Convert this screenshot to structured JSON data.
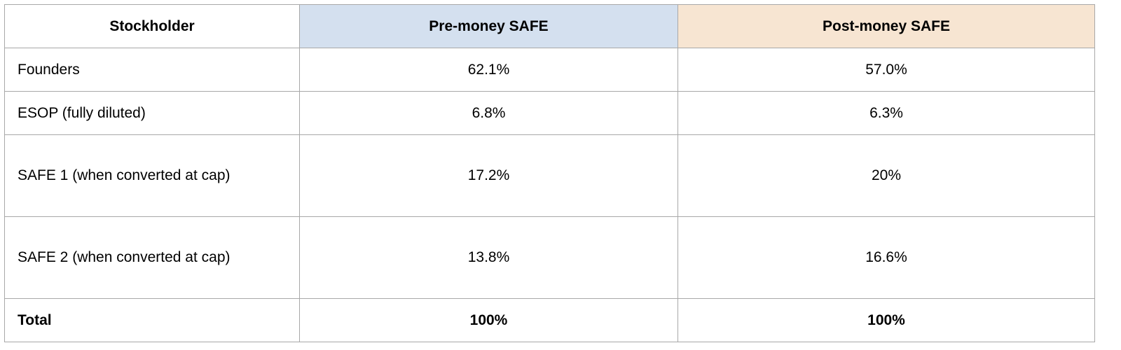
{
  "table": {
    "headers": {
      "stockholder": "Stockholder",
      "pre_money": "Pre-money SAFE",
      "post_money": "Post-money SAFE"
    },
    "header_colors": {
      "pre_money": "#d4e0ef",
      "post_money": "#f7e5d2"
    },
    "rows": [
      {
        "stockholder": "Founders",
        "pre_money": "62.1%",
        "post_money": "57.0%"
      },
      {
        "stockholder": "ESOP (fully diluted)",
        "pre_money": "6.8%",
        "post_money": "6.3%"
      },
      {
        "stockholder": "SAFE 1 (when converted at cap)",
        "pre_money": "17.2%",
        "post_money": "20%"
      },
      {
        "stockholder": "SAFE 2 (when converted at cap)",
        "pre_money": "13.8%",
        "post_money": "16.6%"
      }
    ],
    "total": {
      "stockholder": "Total",
      "pre_money": "100%",
      "post_money": "100%"
    }
  }
}
